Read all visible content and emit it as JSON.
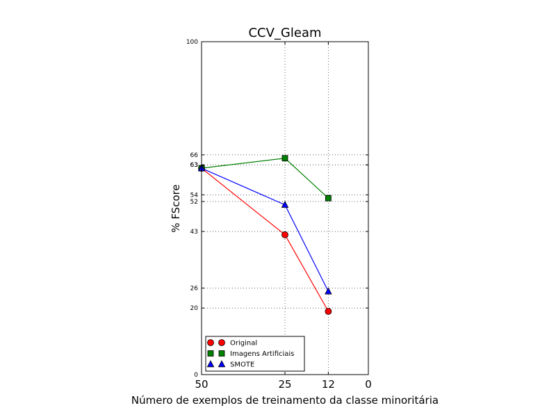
{
  "chart_data": {
    "type": "line",
    "title": "CCV_Gleam",
    "xlabel": "Número de exemplos de treinamento da classe minoritária",
    "ylabel": "% FScore",
    "x": [
      50,
      25,
      12
    ],
    "xlim": [
      50,
      0
    ],
    "ylim": [
      0,
      100
    ],
    "x_ticks": [
      "50",
      "25",
      "12",
      "0"
    ],
    "y_ticks": [
      "0",
      "20",
      "26",
      "43",
      "52",
      "54",
      "63",
      "63",
      "66",
      "100"
    ],
    "grid": true,
    "legend_position": "lower-left",
    "series": [
      {
        "name": "Original",
        "marker": "circle",
        "color": "#ff0000",
        "values": [
          62,
          42,
          19
        ]
      },
      {
        "name": "Imagens Artificiais",
        "marker": "square",
        "color": "#008000",
        "values": [
          62,
          65,
          53
        ]
      },
      {
        "name": "SMOTE",
        "marker": "triangle",
        "color": "#0000ff",
        "values": [
          62,
          51,
          25
        ]
      }
    ]
  }
}
